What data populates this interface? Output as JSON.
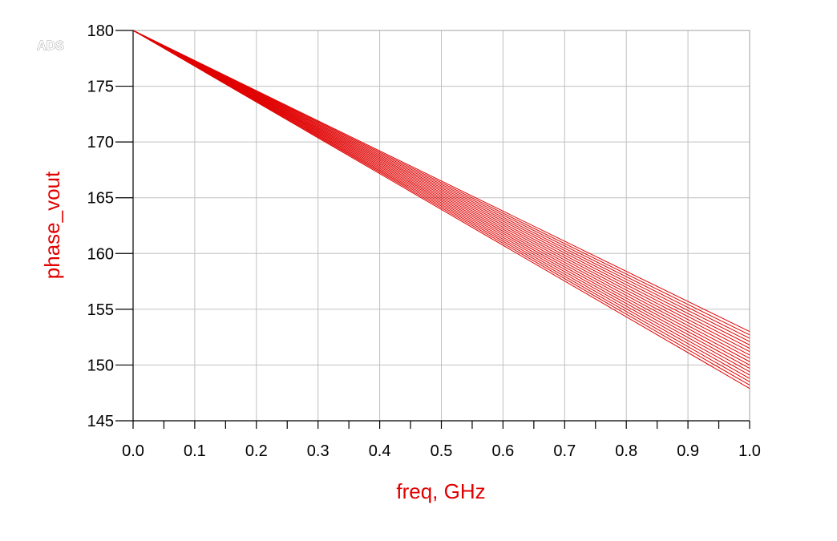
{
  "brand": "ADS",
  "colors": {
    "series": "#e00000",
    "grid": "#c0c0c0",
    "axis": "#000000"
  },
  "chart_data": {
    "type": "line",
    "xlabel": "freq, GHz",
    "ylabel": "phase_vout",
    "xlim": [
      0.0,
      1.0
    ],
    "ylim": [
      145,
      180
    ],
    "xticks": [
      "0.0",
      "0.1",
      "0.2",
      "0.3",
      "0.4",
      "0.5",
      "0.6",
      "0.7",
      "0.8",
      "0.9",
      "1.0"
    ],
    "yticks": [
      "145",
      "150",
      "155",
      "160",
      "165",
      "170",
      "175",
      "180"
    ],
    "grid": true,
    "legend": "none",
    "series": [
      {
        "x": [
          0.0,
          1.0
        ],
        "y": [
          180,
          153.0
        ]
      },
      {
        "x": [
          0.0,
          1.0
        ],
        "y": [
          180,
          152.7
        ]
      },
      {
        "x": [
          0.0,
          1.0
        ],
        "y": [
          180,
          152.4
        ]
      },
      {
        "x": [
          0.0,
          1.0
        ],
        "y": [
          180,
          152.1
        ]
      },
      {
        "x": [
          0.0,
          1.0
        ],
        "y": [
          180,
          151.8
        ]
      },
      {
        "x": [
          0.0,
          1.0
        ],
        "y": [
          180,
          151.5
        ]
      },
      {
        "x": [
          0.0,
          1.0
        ],
        "y": [
          180,
          151.2
        ]
      },
      {
        "x": [
          0.0,
          1.0
        ],
        "y": [
          180,
          150.9
        ]
      },
      {
        "x": [
          0.0,
          1.0
        ],
        "y": [
          180,
          150.6
        ]
      },
      {
        "x": [
          0.0,
          1.0
        ],
        "y": [
          180,
          150.3
        ]
      },
      {
        "x": [
          0.0,
          1.0
        ],
        "y": [
          180,
          150.0
        ]
      },
      {
        "x": [
          0.0,
          1.0
        ],
        "y": [
          180,
          149.7
        ]
      },
      {
        "x": [
          0.0,
          1.0
        ],
        "y": [
          180,
          149.4
        ]
      },
      {
        "x": [
          0.0,
          1.0
        ],
        "y": [
          180,
          149.1
        ]
      },
      {
        "x": [
          0.0,
          1.0
        ],
        "y": [
          180,
          148.8
        ]
      },
      {
        "x": [
          0.0,
          1.0
        ],
        "y": [
          180,
          148.5
        ]
      },
      {
        "x": [
          0.0,
          1.0
        ],
        "y": [
          180,
          148.2
        ]
      },
      {
        "x": [
          0.0,
          1.0
        ],
        "y": [
          180,
          147.9
        ]
      }
    ]
  }
}
